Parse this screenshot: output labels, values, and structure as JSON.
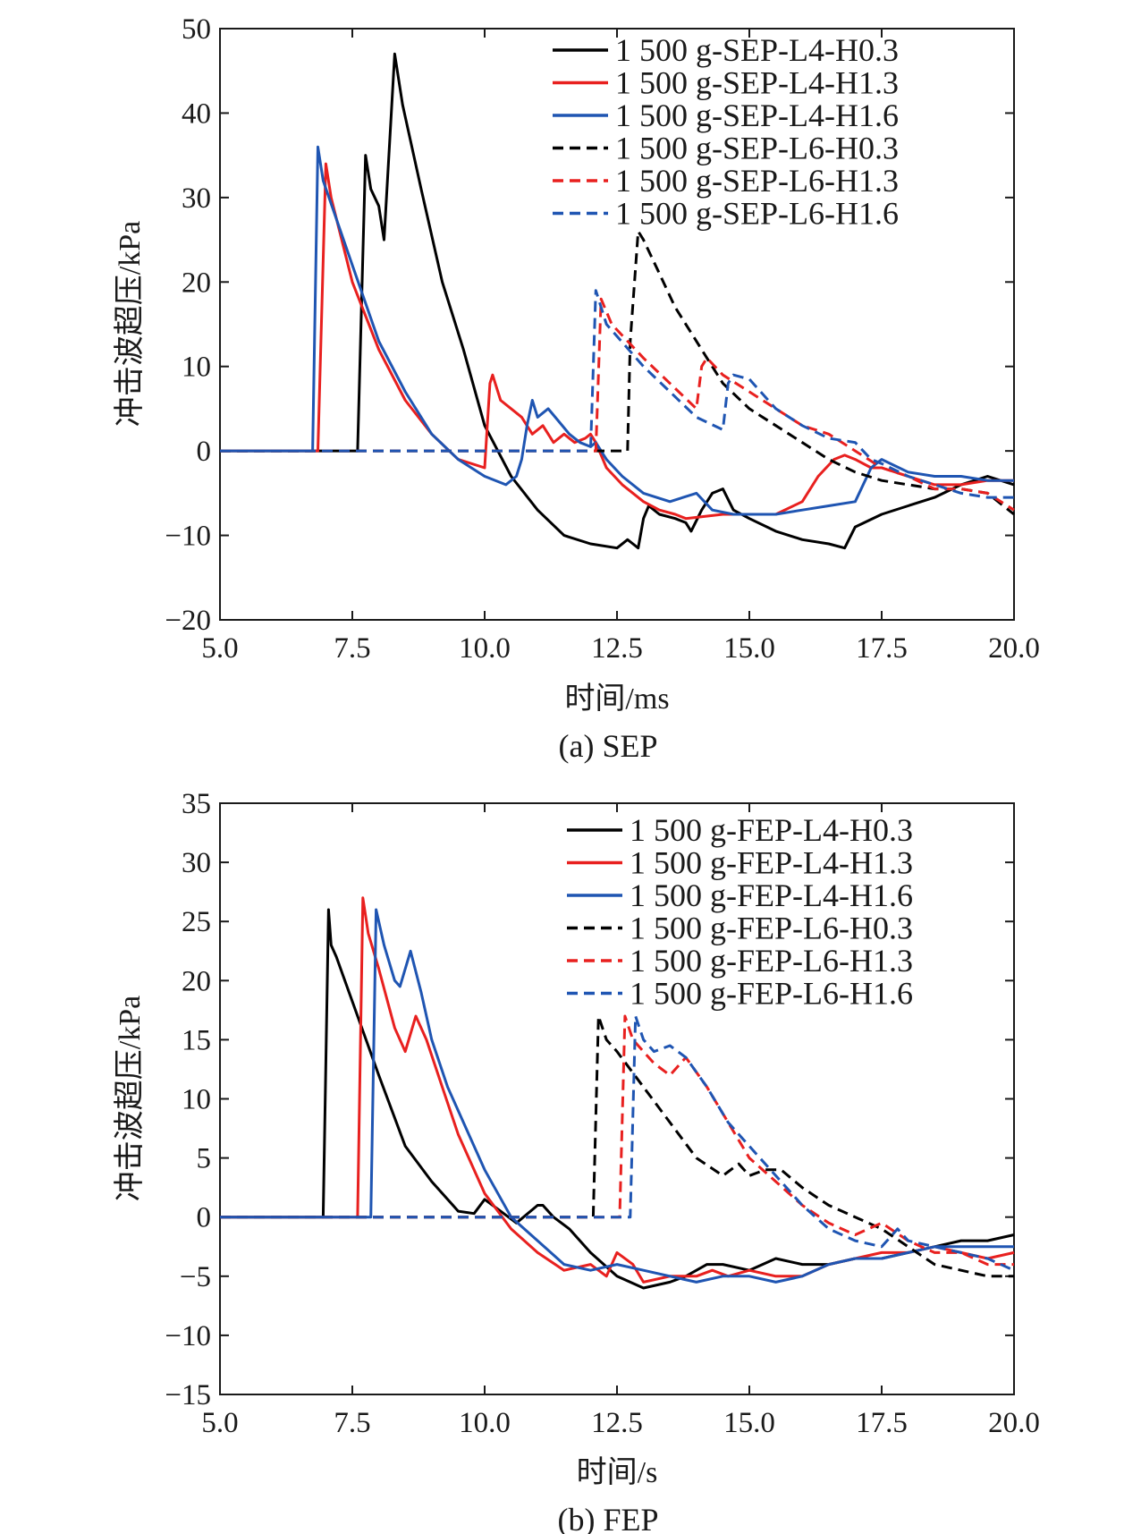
{
  "chart_data": [
    {
      "type": "line",
      "caption": "(a) SEP",
      "xlabel": "时间/ms",
      "ylabel": "冲击波超压/kPa",
      "xlim": [
        5.0,
        20.0
      ],
      "ylim": [
        -20,
        50
      ],
      "xticks": [
        "5.0",
        "7.5",
        "10.0",
        "12.5",
        "15.0",
        "17.5",
        "20.0"
      ],
      "yticks": [
        "50",
        "40",
        "30",
        "20",
        "10",
        "0",
        "−10",
        "−20"
      ],
      "legend_position": "top-right",
      "series": [
        {
          "name": "1 500 g-SEP-L4-H0.3",
          "color": "#000000",
          "dash": "solid",
          "x": [
            5.0,
            7.6,
            7.75,
            7.85,
            8.0,
            8.1,
            8.3,
            8.45,
            8.8,
            9.2,
            9.6,
            10.0,
            10.5,
            11.0,
            11.5,
            12.0,
            12.5,
            12.7,
            12.8,
            12.9,
            13.0,
            13.1,
            13.3,
            13.6,
            13.8,
            13.9,
            14.1,
            14.3,
            14.5,
            14.7,
            15.0,
            15.5,
            16.0,
            16.5,
            16.8,
            17.0,
            17.5,
            18.0,
            18.5,
            19.0,
            19.5,
            20.0
          ],
          "y": [
            0,
            0,
            35,
            31,
            29,
            25,
            47,
            41,
            31,
            20,
            12,
            3,
            -3,
            -7,
            -10,
            -11,
            -11.5,
            -10.5,
            -11,
            -11.5,
            -8,
            -6.5,
            -7.5,
            -8,
            -8.5,
            -9.5,
            -7,
            -5,
            -4.5,
            -7,
            -8,
            -9.5,
            -10.5,
            -11,
            -11.5,
            -9,
            -7.5,
            -6.5,
            -5.5,
            -4,
            -3,
            -4
          ]
        },
        {
          "name": "1 500 g-SEP-L4-H1.3",
          "color": "#e8201f",
          "dash": "solid",
          "x": [
            5.0,
            6.85,
            7.0,
            7.1,
            7.5,
            8.0,
            8.5,
            9.0,
            9.5,
            10.0,
            10.1,
            10.15,
            10.3,
            10.5,
            10.7,
            10.9,
            11.1,
            11.3,
            11.5,
            11.7,
            11.9,
            12.0,
            12.1,
            12.3,
            12.6,
            13.0,
            13.3,
            13.6,
            13.8,
            14.5,
            15.0,
            15.5,
            16.0,
            16.3,
            16.6,
            16.8,
            17.0,
            17.3,
            17.5,
            18.0,
            18.5,
            19.0,
            19.5,
            20.0
          ],
          "y": [
            0,
            0,
            34,
            30,
            20,
            12,
            6,
            2,
            -1,
            -2,
            8,
            9,
            6,
            5,
            4,
            2,
            3,
            1,
            2,
            1,
            1.5,
            2,
            1,
            -2,
            -4,
            -6,
            -7,
            -7.5,
            -8,
            -7.5,
            -7.5,
            -7.5,
            -6,
            -3,
            -1,
            -0.5,
            -1,
            -2,
            -2,
            -3,
            -4,
            -4,
            -3.5,
            -3.5
          ]
        },
        {
          "name": "1 500 g-SEP-L4-H1.6",
          "color": "#1f55b2",
          "dash": "solid",
          "x": [
            5.0,
            6.75,
            6.85,
            6.95,
            7.5,
            8.0,
            8.5,
            9.0,
            9.5,
            10.0,
            10.4,
            10.6,
            10.7,
            10.8,
            10.9,
            11.0,
            11.2,
            11.4,
            11.6,
            11.8,
            12.0,
            12.1,
            12.3,
            12.6,
            13.0,
            13.5,
            14.0,
            14.3,
            14.7,
            15.0,
            15.5,
            16.0,
            16.5,
            17.0,
            17.3,
            17.5,
            18.0,
            18.5,
            19.0,
            19.5,
            20.0
          ],
          "y": [
            0,
            0,
            36,
            32,
            22,
            13,
            7,
            2,
            -1,
            -3,
            -4,
            -3,
            -1,
            3,
            6,
            4,
            5,
            3.5,
            2,
            1,
            0.5,
            1,
            -1,
            -3,
            -5,
            -6,
            -5,
            -7,
            -7.5,
            -7.5,
            -7.5,
            -7,
            -6.5,
            -6,
            -2,
            -1,
            -2.5,
            -3,
            -3,
            -3.5,
            -3.5
          ]
        },
        {
          "name": "1 500 g-SEP-L6-H0.3",
          "color": "#000000",
          "dash": "dashed",
          "x": [
            5.0,
            12.7,
            12.75,
            12.9,
            13.0,
            13.3,
            13.6,
            14.0,
            14.2,
            14.5,
            15.0,
            15.5,
            16.0,
            16.5,
            17.0,
            17.5,
            18.0,
            18.5,
            19.0,
            19.5,
            20.0
          ],
          "y": [
            0,
            0,
            13,
            26,
            25,
            21,
            17,
            13,
            11,
            8,
            5,
            3,
            1,
            -1,
            -2.5,
            -3.5,
            -4,
            -4.5,
            -4.5,
            -5,
            -7.5
          ]
        },
        {
          "name": "1 500 g-SEP-L6-H1.3",
          "color": "#e8201f",
          "dash": "dashed",
          "x": [
            5.0,
            12.1,
            12.2,
            12.4,
            13.0,
            13.5,
            14.0,
            14.1,
            14.2,
            14.5,
            15.0,
            15.5,
            16.0,
            16.5,
            17.0,
            17.5,
            18.0,
            18.5,
            19.0,
            19.5,
            20.0
          ],
          "y": [
            0,
            0,
            18,
            15,
            11,
            8,
            5,
            10,
            11,
            9,
            7,
            5,
            3,
            2,
            0,
            -2,
            -3,
            -4.5,
            -4.5,
            -5,
            -7
          ]
        },
        {
          "name": "1 500 g-SEP-L6-H1.6",
          "color": "#1f55b2",
          "dash": "dashed",
          "x": [
            5.0,
            12.0,
            12.1,
            12.3,
            13.0,
            13.5,
            14.0,
            14.5,
            14.6,
            14.7,
            15.0,
            15.5,
            16.0,
            16.5,
            17.0,
            17.3,
            17.5,
            18.0,
            18.5,
            19.0,
            19.5,
            20.0
          ],
          "y": [
            0,
            0,
            19,
            15,
            10,
            7,
            4,
            2.5,
            8,
            9,
            8.5,
            5,
            3,
            1.5,
            1,
            -1,
            -1.5,
            -3,
            -4,
            -5,
            -5.5,
            -5.5
          ]
        }
      ]
    },
    {
      "type": "line",
      "caption": "(b) FEP",
      "xlabel": "时间/s",
      "ylabel": "冲击波超压/kPa",
      "xlim": [
        5.0,
        20.0
      ],
      "ylim": [
        -15,
        35
      ],
      "xticks": [
        "5.0",
        "7.5",
        "10.0",
        "12.5",
        "15.0",
        "17.5",
        "20.0"
      ],
      "yticks": [
        "35",
        "30",
        "25",
        "20",
        "15",
        "10",
        "5",
        "0",
        "−5",
        "−10",
        "−15"
      ],
      "legend_position": "top-right",
      "series": [
        {
          "name": "1 500 g-FEP-L4-H0.3",
          "color": "#000000",
          "dash": "solid",
          "x": [
            5.0,
            6.95,
            7.05,
            7.1,
            7.2,
            7.6,
            8.0,
            8.5,
            9.0,
            9.5,
            9.8,
            10.0,
            10.3,
            10.6,
            11.0,
            11.1,
            11.3,
            11.6,
            12.0,
            12.5,
            13.0,
            13.5,
            13.8,
            14.0,
            14.2,
            14.5,
            15.0,
            15.5,
            16.0,
            16.5,
            17.0,
            17.5,
            18.0,
            18.5,
            19.0,
            19.5,
            20.0
          ],
          "y": [
            0,
            0,
            26,
            23,
            22,
            17,
            12,
            6,
            3,
            0.5,
            0.3,
            1.5,
            0.5,
            -0.5,
            1,
            1,
            0,
            -1,
            -3,
            -5,
            -6,
            -5.5,
            -5,
            -4.5,
            -4,
            -4,
            -4.5,
            -3.5,
            -4,
            -4,
            -3.5,
            -3.5,
            -3,
            -2.5,
            -2,
            -2,
            -1.5
          ]
        },
        {
          "name": "1 500 g-FEP-L4-H1.3",
          "color": "#e8201f",
          "dash": "solid",
          "x": [
            5.0,
            7.6,
            7.7,
            7.8,
            8.0,
            8.3,
            8.5,
            8.7,
            8.9,
            9.2,
            9.5,
            10.0,
            10.5,
            11.0,
            11.5,
            12.0,
            12.3,
            12.5,
            12.8,
            13.0,
            13.5,
            14.0,
            14.3,
            14.6,
            15.0,
            15.5,
            16.0,
            16.5,
            17.0,
            17.5,
            18.0,
            18.5,
            19.0,
            19.5,
            20.0
          ],
          "y": [
            0,
            0,
            27,
            24,
            21,
            16,
            14,
            17,
            15,
            11,
            7,
            2,
            -1,
            -3,
            -4.5,
            -4,
            -5,
            -3,
            -4,
            -5.5,
            -5,
            -5,
            -4.5,
            -5,
            -4.5,
            -5,
            -5,
            -4,
            -3.5,
            -3,
            -3,
            -2.5,
            -3,
            -3.5,
            -3
          ]
        },
        {
          "name": "1 500 g-FEP-L4-H1.6",
          "color": "#1f55b2",
          "dash": "solid",
          "x": [
            5.0,
            7.85,
            7.95,
            8.1,
            8.3,
            8.4,
            8.6,
            8.8,
            9.0,
            9.3,
            9.6,
            10.0,
            10.5,
            11.0,
            11.5,
            12.0,
            12.5,
            13.0,
            13.5,
            14.0,
            14.5,
            15.0,
            15.5,
            16.0,
            16.5,
            17.0,
            17.5,
            18.0,
            18.5,
            19.0,
            19.5,
            20.0
          ],
          "y": [
            0,
            0,
            26,
            23,
            20,
            19.5,
            22.5,
            19,
            15,
            11,
            8,
            4,
            0,
            -2,
            -4,
            -4.5,
            -4,
            -4.5,
            -5,
            -5.5,
            -5,
            -5,
            -5.5,
            -5,
            -4,
            -3.5,
            -3.5,
            -3,
            -2.5,
            -2.5,
            -2.5,
            -2.5
          ]
        },
        {
          "name": "1 500 g-FEP-L6-H0.3",
          "color": "#000000",
          "dash": "dashed",
          "x": [
            5.0,
            12.05,
            12.15,
            12.3,
            12.5,
            13.0,
            13.5,
            14.0,
            14.5,
            14.8,
            15.0,
            15.3,
            15.6,
            16.0,
            16.5,
            17.0,
            17.5,
            18.0,
            18.5,
            19.0,
            19.5,
            20.0
          ],
          "y": [
            0,
            0,
            17,
            15,
            14,
            11,
            8,
            5,
            3.5,
            4.5,
            3.5,
            4,
            4,
            2.5,
            1,
            0,
            -1,
            -2.5,
            -4,
            -4.5,
            -5,
            -5
          ]
        },
        {
          "name": "1 500 g-FEP-L6-H1.3",
          "color": "#e8201f",
          "dash": "dashed",
          "x": [
            5.0,
            12.55,
            12.65,
            12.8,
            13.2,
            13.5,
            13.8,
            14.2,
            14.6,
            15.0,
            15.5,
            16.0,
            16.5,
            17.0,
            17.5,
            18.0,
            18.5,
            19.0,
            19.5,
            20.0
          ],
          "y": [
            0,
            0,
            17,
            15,
            13,
            12,
            13.5,
            11,
            8,
            5,
            3,
            1,
            -0.5,
            -1.5,
            -0.5,
            -2,
            -3,
            -3,
            -4,
            -4
          ]
        },
        {
          "name": "1 500 g-FEP-L6-H1.6",
          "color": "#1f55b2",
          "dash": "dashed",
          "x": [
            5.0,
            12.75,
            12.85,
            13.0,
            13.2,
            13.5,
            13.8,
            14.2,
            14.6,
            15.0,
            15.5,
            16.0,
            16.5,
            17.0,
            17.5,
            17.8,
            18.0,
            18.5,
            19.0,
            19.5,
            20.0
          ],
          "y": [
            0,
            0,
            17,
            15,
            14,
            14.5,
            13.5,
            11,
            8,
            6,
            3.5,
            1,
            -1,
            -2,
            -2.5,
            -1,
            -2,
            -2.5,
            -3,
            -3.5,
            -4.5
          ]
        }
      ]
    }
  ]
}
